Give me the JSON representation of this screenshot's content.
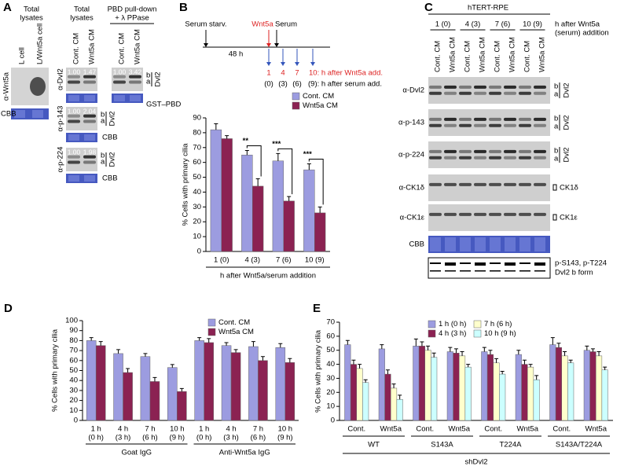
{
  "chart_data": [
    {
      "type": "bar",
      "panel": "B",
      "ylabel": "% Cells with primary cilia",
      "xlabel": "h after Wnt5a/serum addition",
      "categories": [
        "1 (0)",
        "4 (3)",
        "7 (6)",
        "10 (9)"
      ],
      "series": [
        {
          "name": "Cont. CM",
          "color": "#9c9ce0",
          "values": [
            82,
            65,
            61,
            55
          ],
          "errors": [
            4,
            3,
            5,
            4
          ]
        },
        {
          "name": "Wnt5a CM",
          "color": "#8b2252",
          "values": [
            76,
            44,
            34,
            26
          ],
          "errors": [
            2,
            5,
            3,
            4
          ]
        }
      ],
      "significance": [
        null,
        "**",
        "***",
        "***"
      ],
      "ylim": [
        0,
        90
      ],
      "yticks": [
        0,
        10,
        20,
        30,
        40,
        50,
        60,
        70,
        80,
        90
      ],
      "legend": "upper right",
      "scheme": {
        "starv": "Serum starv.",
        "duration": "48 h",
        "wnt5a": "Wnt5a",
        "serum": "Serum",
        "wnt_times": [
          "1",
          "4",
          "7",
          "10: h after Wnt5a add."
        ],
        "serum_times": [
          "(0)",
          "(3)",
          "(6)",
          "(9): h after serum add."
        ]
      }
    },
    {
      "type": "bar",
      "panel": "D",
      "ylabel": "% Cells with primary cilia",
      "categories": [
        "1 h",
        "4 h",
        "7 h",
        "10 h",
        "1 h",
        "4 h",
        "7 h",
        "10 h"
      ],
      "sublabels": [
        "(0 h)",
        "(3 h)",
        "(6 h)",
        "(9 h)",
        "(0 h)",
        "(3 h)",
        "(6 h)",
        "(9 h)"
      ],
      "groups": [
        "Goat IgG",
        "Anti-Wnt5a IgG"
      ],
      "series": [
        {
          "name": "Cont. CM",
          "color": "#9c9ce0",
          "values": [
            80,
            67,
            64,
            53,
            80,
            75,
            74,
            73
          ],
          "errors": [
            3,
            4,
            3,
            3,
            3,
            3,
            5,
            4
          ]
        },
        {
          "name": "Wnt5a CM",
          "color": "#8b2252",
          "values": [
            75,
            48,
            39,
            29,
            78,
            68,
            60,
            58
          ],
          "errors": [
            4,
            4,
            4,
            3,
            4,
            3,
            4,
            4
          ]
        }
      ],
      "ylim": [
        0,
        100
      ],
      "yticks": [
        0,
        10,
        20,
        30,
        40,
        50,
        60,
        70,
        80,
        90,
        100
      ],
      "legend": "upper right"
    },
    {
      "type": "bar",
      "panel": "E",
      "ylabel": "% Cells with primary cilia",
      "categories": [
        "Cont.",
        "Wnt5a",
        "Cont.",
        "Wnt5a",
        "Cont.",
        "Wnt5a",
        "Cont.",
        "Wnt5a"
      ],
      "groups": [
        "WT",
        "S143A",
        "T224A",
        "S143A/T224A"
      ],
      "supergroup": "shDvl2",
      "series": [
        {
          "name": "1 h (0 h)",
          "color": "#9c9ce0",
          "values": [
            54,
            51,
            53,
            49,
            49,
            47,
            54,
            50
          ],
          "errors": [
            3,
            3,
            5,
            3,
            3,
            3,
            5,
            3
          ]
        },
        {
          "name": "4 h (3 h)",
          "color": "#8b2252",
          "values": [
            40,
            33,
            53,
            48,
            47,
            40,
            52,
            49
          ],
          "errors": [
            3,
            3,
            3,
            3,
            3,
            3,
            3,
            2
          ]
        },
        {
          "name": "7 h (6 h)",
          "color": "#ffffcc",
          "values": [
            37,
            23,
            50,
            46,
            41,
            38,
            46,
            46
          ],
          "errors": [
            3,
            3,
            3,
            3,
            3,
            2,
            3,
            3
          ]
        },
        {
          "name": "10 h (9 h)",
          "color": "#ccffff",
          "values": [
            27,
            15,
            45,
            38,
            33,
            29,
            41,
            36
          ],
          "errors": [
            2,
            3,
            3,
            2,
            2,
            3,
            2,
            2
          ]
        }
      ],
      "ylim": [
        0,
        70
      ],
      "yticks": [
        0,
        10,
        20,
        30,
        40,
        50,
        60,
        70
      ],
      "legend": "upper center"
    }
  ],
  "panel_a": {
    "label": "A",
    "left": {
      "title": [
        "Total",
        "lysates"
      ],
      "lanes": [
        "L cell",
        "L/Wnt5a cell"
      ],
      "antibody": "α-Wnt5a",
      "loading": "CBB"
    },
    "right": {
      "titles": [
        [
          "Total",
          "lysates"
        ],
        [
          "PBD pull-down",
          "+ λ PPase"
        ]
      ],
      "lanes": [
        "Cont. CM",
        "Wnt5a CM",
        "Cont. CM",
        "Wnt5a CM"
      ],
      "blots": [
        {
          "antibody": "α-Dvl2",
          "quant": [
            "1.00",
            "1.47",
            "1.00",
            "3.42"
          ],
          "bands": [
            "b",
            "a"
          ],
          "protein": "Dvl2",
          "loading": "GST–PBD"
        },
        {
          "antibody": "α-p-143",
          "quant": [
            "1.00",
            "2.04"
          ],
          "bands": [
            "b",
            "a"
          ],
          "protein": "Dvl2",
          "loading": "CBB"
        },
        {
          "antibody": "α-p-224",
          "quant": [
            "1.00",
            "1.98"
          ],
          "bands": [
            "b",
            "a"
          ],
          "protein": "Dvl2",
          "loading": "CBB"
        }
      ]
    }
  },
  "panel_c": {
    "label": "C",
    "title": "hTERT-RPE",
    "times": [
      "1 (0)",
      "4 (3)",
      "7 (6)",
      "10 (9)"
    ],
    "time_label": [
      "h after Wnt5a",
      "(serum) addition"
    ],
    "lanes": [
      "Cont. CM",
      "Wnt5a CM",
      "Cont. CM",
      "Wnt5a CM",
      "Cont. CM",
      "Wnt5a CM",
      "Cont. CM",
      "Wnt5a CM"
    ],
    "blots": [
      {
        "antibody": "α-Dvl2",
        "right": [
          "b",
          "a",
          "Dvl2"
        ]
      },
      {
        "antibody": "α-p-143",
        "right": [
          "b",
          "a",
          "Dvl2"
        ]
      },
      {
        "antibody": "α-p-224",
        "right": [
          "b",
          "a",
          "Dvl2"
        ]
      },
      {
        "antibody": "α-CK1δ",
        "right": [
          "CK1δ"
        ]
      },
      {
        "antibody": "α-CK1ε",
        "right": [
          "CK1ε"
        ]
      }
    ],
    "loading": "CBB",
    "scheme_label": [
      "p-S143, p-T224",
      "Dvl2 b form"
    ]
  }
}
